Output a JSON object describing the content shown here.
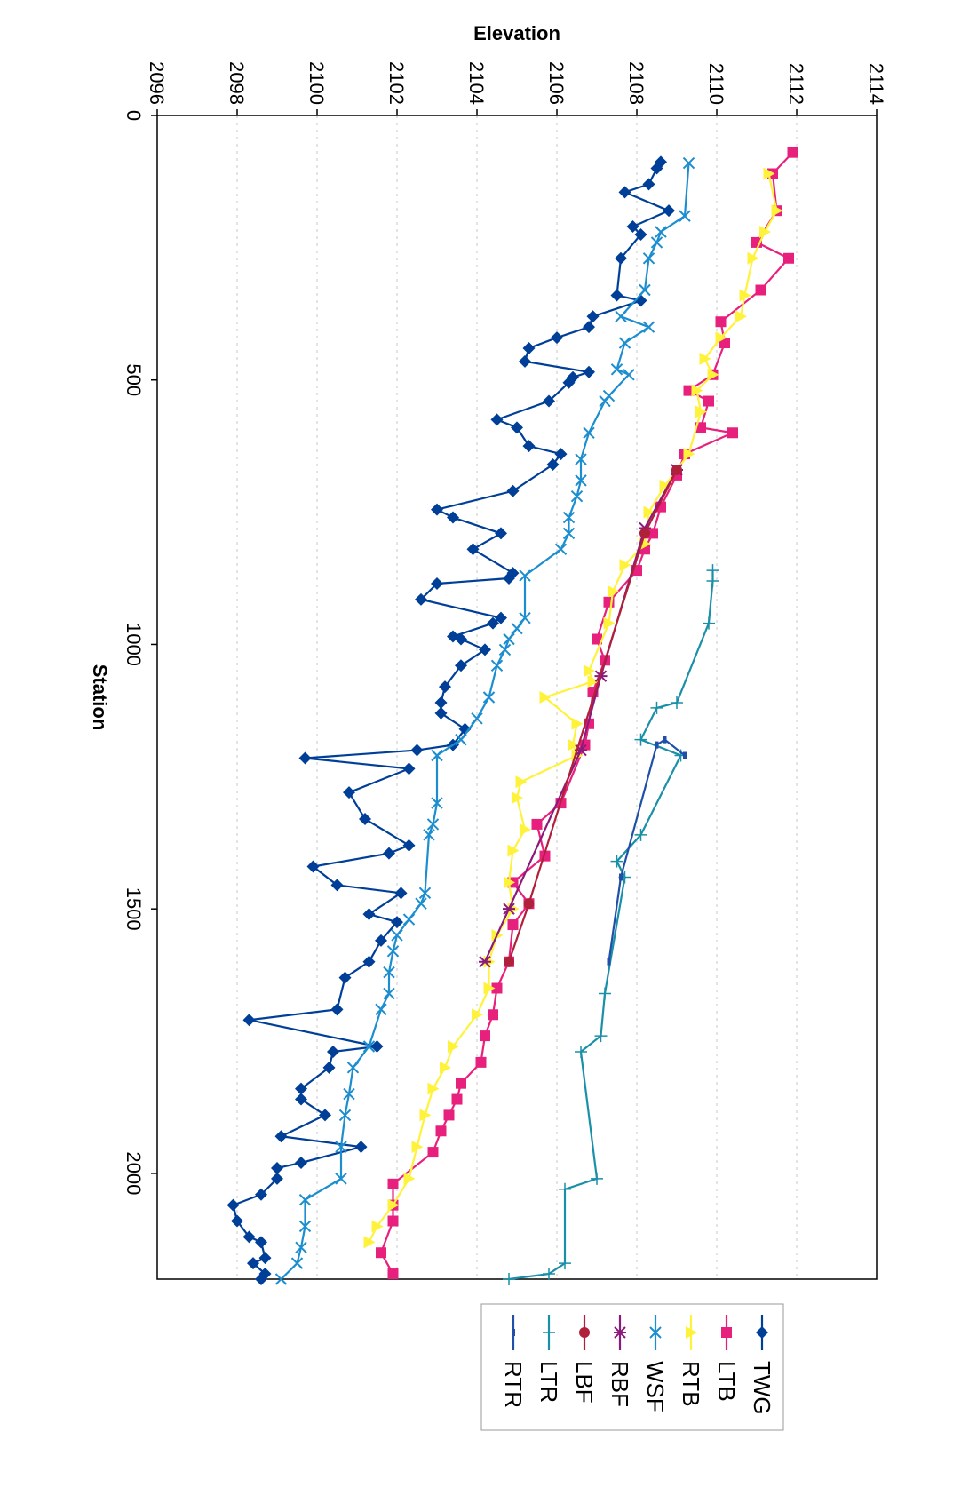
{
  "chart_data": {
    "type": "line",
    "title": "",
    "xlabel": "Station",
    "ylabel": "Elevation",
    "xlim": [
      0,
      2200
    ],
    "ylim": [
      2096,
      2114
    ],
    "xticks": [
      0,
      500,
      1000,
      1500,
      2000
    ],
    "yticks": [
      2096,
      2098,
      2100,
      2102,
      2104,
      2106,
      2108,
      2110,
      2112,
      2114
    ],
    "grid": "horizontal dashed",
    "legend_position": "top-right (rotated)",
    "orientation": "rotated 90 degrees clockwise",
    "series": [
      {
        "name": "TWG",
        "color": "#003F98",
        "marker": "diamond",
        "points": [
          [
            88,
            2108.6
          ],
          [
            100,
            2108.5
          ],
          [
            130,
            2108.3
          ],
          [
            145,
            2107.7
          ],
          [
            180,
            2108.8
          ],
          [
            210,
            2107.9
          ],
          [
            225,
            2108.1
          ],
          [
            270,
            2107.6
          ],
          [
            340,
            2107.5
          ],
          [
            350,
            2108.1
          ],
          [
            380,
            2106.9
          ],
          [
            400,
            2106.8
          ],
          [
            420,
            2106.0
          ],
          [
            440,
            2105.3
          ],
          [
            465,
            2105.2
          ],
          [
            485,
            2106.8
          ],
          [
            495,
            2106.4
          ],
          [
            505,
            2106.3
          ],
          [
            540,
            2105.8
          ],
          [
            575,
            2104.5
          ],
          [
            590,
            2105.0
          ],
          [
            625,
            2105.3
          ],
          [
            640,
            2106.1
          ],
          [
            660,
            2105.9
          ],
          [
            710,
            2104.9
          ],
          [
            745,
            2103.0
          ],
          [
            760,
            2103.4
          ],
          [
            790,
            2104.6
          ],
          [
            820,
            2103.9
          ],
          [
            865,
            2104.9
          ],
          [
            875,
            2104.8
          ],
          [
            885,
            2103.0
          ],
          [
            915,
            2102.6
          ],
          [
            950,
            2104.6
          ],
          [
            960,
            2104.4
          ],
          [
            985,
            2103.4
          ],
          [
            990,
            2103.6
          ],
          [
            1010,
            2104.2
          ],
          [
            1040,
            2103.6
          ],
          [
            1080,
            2103.2
          ],
          [
            1110,
            2103.1
          ],
          [
            1130,
            2103.1
          ],
          [
            1160,
            2103.7
          ],
          [
            1190,
            2103.4
          ],
          [
            1200,
            2102.5
          ],
          [
            1215,
            2099.7
          ],
          [
            1235,
            2102.3
          ],
          [
            1280,
            2100.8
          ],
          [
            1330,
            2101.2
          ],
          [
            1380,
            2102.3
          ],
          [
            1395,
            2101.8
          ],
          [
            1420,
            2099.9
          ],
          [
            1455,
            2100.5
          ],
          [
            1470,
            2102.1
          ],
          [
            1510,
            2101.3
          ],
          [
            1525,
            2102.0
          ],
          [
            1560,
            2101.6
          ],
          [
            1600,
            2101.3
          ],
          [
            1630,
            2100.7
          ],
          [
            1690,
            2100.5
          ],
          [
            1710,
            2098.3
          ],
          [
            1760,
            2101.5
          ],
          [
            1770,
            2100.4
          ],
          [
            1800,
            2100.3
          ],
          [
            1840,
            2099.6
          ],
          [
            1860,
            2099.6
          ],
          [
            1890,
            2100.2
          ],
          [
            1930,
            2099.1
          ],
          [
            1950,
            2101.1
          ],
          [
            1980,
            2099.6
          ],
          [
            1990,
            2099.0
          ],
          [
            2010,
            2099.0
          ],
          [
            2040,
            2098.6
          ],
          [
            2060,
            2097.9
          ],
          [
            2090,
            2098.0
          ],
          [
            2120,
            2098.3
          ],
          [
            2130,
            2098.6
          ],
          [
            2160,
            2098.7
          ],
          [
            2170,
            2098.4
          ],
          [
            2190,
            2098.7
          ],
          [
            2200,
            2098.6
          ]
        ]
      },
      {
        "name": "LTB",
        "color": "#E8207D",
        "marker": "square",
        "points": [
          [
            70,
            2111.9
          ],
          [
            110,
            2111.4
          ],
          [
            180,
            2111.5
          ],
          [
            240,
            2111.0
          ],
          [
            270,
            2111.8
          ],
          [
            330,
            2111.1
          ],
          [
            390,
            2110.1
          ],
          [
            430,
            2110.2
          ],
          [
            490,
            2109.9
          ],
          [
            520,
            2109.3
          ],
          [
            540,
            2109.8
          ],
          [
            590,
            2109.6
          ],
          [
            600,
            2110.4
          ],
          [
            640,
            2109.2
          ],
          [
            680,
            2109.0
          ],
          [
            740,
            2108.6
          ],
          [
            790,
            2108.4
          ],
          [
            820,
            2108.2
          ],
          [
            860,
            2108.0
          ],
          [
            920,
            2107.3
          ],
          [
            990,
            2107.0
          ],
          [
            1030,
            2107.2
          ],
          [
            1090,
            2106.9
          ],
          [
            1150,
            2106.8
          ],
          [
            1190,
            2106.7
          ],
          [
            1300,
            2106.1
          ],
          [
            1340,
            2105.5
          ],
          [
            1400,
            2105.7
          ],
          [
            1450,
            2104.9
          ],
          [
            1490,
            2105.3
          ],
          [
            1530,
            2104.9
          ],
          [
            1600,
            2104.8
          ],
          [
            1650,
            2104.5
          ],
          [
            1700,
            2104.4
          ],
          [
            1740,
            2104.2
          ],
          [
            1790,
            2104.1
          ],
          [
            1830,
            2103.6
          ],
          [
            1860,
            2103.5
          ],
          [
            1890,
            2103.3
          ],
          [
            1920,
            2103.1
          ],
          [
            1960,
            2102.9
          ],
          [
            2020,
            2101.9
          ],
          [
            2060,
            2101.9
          ],
          [
            2090,
            2101.9
          ],
          [
            2150,
            2101.6
          ],
          [
            2190,
            2101.9
          ]
        ]
      },
      {
        "name": "RTB",
        "color": "#FFF23A",
        "marker": "triangle",
        "points": [
          [
            110,
            2111.3
          ],
          [
            180,
            2111.5
          ],
          [
            220,
            2111.2
          ],
          [
            270,
            2110.9
          ],
          [
            340,
            2110.7
          ],
          [
            380,
            2110.6
          ],
          [
            420,
            2110.1
          ],
          [
            460,
            2109.7
          ],
          [
            490,
            2109.9
          ],
          [
            520,
            2109.5
          ],
          [
            560,
            2109.6
          ],
          [
            640,
            2109.3
          ],
          [
            700,
            2108.7
          ],
          [
            750,
            2108.3
          ],
          [
            810,
            2108.2
          ],
          [
            850,
            2107.7
          ],
          [
            900,
            2107.4
          ],
          [
            960,
            2107.3
          ],
          [
            1050,
            2106.8
          ],
          [
            1070,
            2106.9
          ],
          [
            1100,
            2105.7
          ],
          [
            1150,
            2106.5
          ],
          [
            1190,
            2106.4
          ],
          [
            1210,
            2106.5
          ],
          [
            1260,
            2105.1
          ],
          [
            1290,
            2105.0
          ],
          [
            1350,
            2105.2
          ],
          [
            1390,
            2104.9
          ],
          [
            1450,
            2104.8
          ],
          [
            1500,
            2104.9
          ],
          [
            1550,
            2104.5
          ],
          [
            1600,
            2104.3
          ],
          [
            1650,
            2104.3
          ],
          [
            1700,
            2104.0
          ],
          [
            1760,
            2103.4
          ],
          [
            1800,
            2103.2
          ],
          [
            1840,
            2102.9
          ],
          [
            1890,
            2102.7
          ],
          [
            1950,
            2102.5
          ],
          [
            2010,
            2102.3
          ],
          [
            2060,
            2101.9
          ],
          [
            2100,
            2101.5
          ],
          [
            2130,
            2101.3
          ]
        ]
      },
      {
        "name": "WSF",
        "color": "#1C8ED0",
        "marker": "x",
        "points": [
          [
            90,
            2109.3
          ],
          [
            190,
            2109.2
          ],
          [
            220,
            2108.6
          ],
          [
            240,
            2108.5
          ],
          [
            270,
            2108.3
          ],
          [
            330,
            2108.2
          ],
          [
            380,
            2107.6
          ],
          [
            400,
            2108.3
          ],
          [
            430,
            2107.7
          ],
          [
            480,
            2107.5
          ],
          [
            490,
            2107.8
          ],
          [
            530,
            2107.3
          ],
          [
            540,
            2107.2
          ],
          [
            600,
            2106.8
          ],
          [
            650,
            2106.6
          ],
          [
            690,
            2106.6
          ],
          [
            720,
            2106.5
          ],
          [
            760,
            2106.3
          ],
          [
            790,
            2106.3
          ],
          [
            820,
            2106.1
          ],
          [
            870,
            2105.2
          ],
          [
            950,
            2105.2
          ],
          [
            970,
            2105.0
          ],
          [
            990,
            2104.8
          ],
          [
            1010,
            2104.7
          ],
          [
            1040,
            2104.5
          ],
          [
            1100,
            2104.3
          ],
          [
            1140,
            2104.0
          ],
          [
            1180,
            2103.6
          ],
          [
            1210,
            2103.0
          ],
          [
            1300,
            2103.0
          ],
          [
            1340,
            2102.9
          ],
          [
            1360,
            2102.8
          ],
          [
            1470,
            2102.7
          ],
          [
            1490,
            2102.6
          ],
          [
            1520,
            2102.3
          ],
          [
            1550,
            2102.0
          ],
          [
            1580,
            2101.9
          ],
          [
            1620,
            2101.8
          ],
          [
            1660,
            2101.8
          ],
          [
            1690,
            2101.6
          ],
          [
            1760,
            2101.3
          ],
          [
            1800,
            2100.9
          ],
          [
            1850,
            2100.8
          ],
          [
            1890,
            2100.7
          ],
          [
            1950,
            2100.6
          ],
          [
            2010,
            2100.6
          ],
          [
            2050,
            2099.7
          ],
          [
            2100,
            2099.7
          ],
          [
            2140,
            2099.6
          ],
          [
            2170,
            2099.5
          ],
          [
            2200,
            2099.1
          ]
        ]
      },
      {
        "name": "RBF",
        "color": "#8B1A7A",
        "marker": "asterisk",
        "points": [
          [
            670,
            2109.0
          ],
          [
            780,
            2108.2
          ],
          [
            1060,
            2107.1
          ],
          [
            1200,
            2106.6
          ],
          [
            1500,
            2104.8
          ],
          [
            1600,
            2104.2
          ]
        ]
      },
      {
        "name": "LBF",
        "color": "#B0203A",
        "marker": "circle",
        "points": [
          [
            670,
            2109.0
          ],
          [
            790,
            2108.2
          ],
          [
            1490,
            2105.3
          ],
          [
            1600,
            2104.8
          ]
        ]
      },
      {
        "name": "LTR",
        "color": "#1A8FA8",
        "marker": "plus",
        "points": [
          [
            860,
            2109.9
          ],
          [
            880,
            2109.9
          ],
          [
            960,
            2109.8
          ],
          [
            1110,
            2109.0
          ],
          [
            1120,
            2108.5
          ],
          [
            1180,
            2108.1
          ],
          [
            1210,
            2109.1
          ],
          [
            1360,
            2108.1
          ],
          [
            1410,
            2107.5
          ],
          [
            1440,
            2107.7
          ],
          [
            1660,
            2107.2
          ],
          [
            1740,
            2107.1
          ],
          [
            1770,
            2106.6
          ],
          [
            2010,
            2107.0
          ],
          [
            2030,
            2106.2
          ],
          [
            2170,
            2106.2
          ],
          [
            2190,
            2105.8
          ],
          [
            2200,
            2104.8
          ]
        ]
      },
      {
        "name": "RTR",
        "color": "#1F4FA8",
        "marker": "dash",
        "points": [
          [
            1210,
            2109.2
          ],
          [
            1180,
            2108.7
          ],
          [
            1190,
            2108.5
          ],
          [
            1440,
            2107.6
          ],
          [
            1600,
            2107.3
          ]
        ]
      }
    ]
  }
}
